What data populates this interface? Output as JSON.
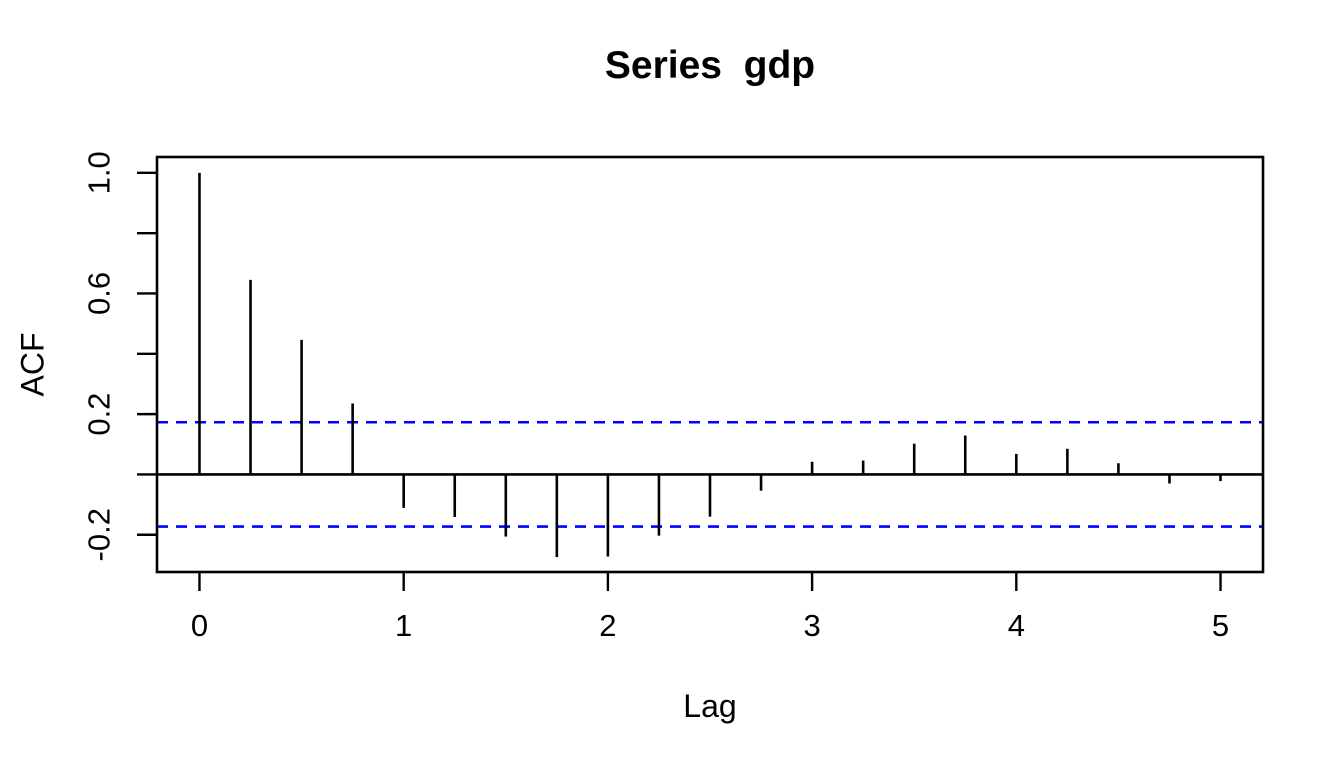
{
  "figure": {
    "background": "#ffffff"
  },
  "chart_data": {
    "type": "bar",
    "subtype": "acf-stem-plot",
    "title": "Series  gdp",
    "xlabel": "Lag",
    "ylabel": "ACF",
    "grid": false,
    "legend": null,
    "xlim": [
      -0.208,
      5.208
    ],
    "ylim": [
      -0.3235,
      1.0525
    ],
    "x": [
      0,
      0.25,
      0.5,
      0.75,
      1.0,
      1.25,
      1.5,
      1.75,
      2.0,
      2.25,
      2.5,
      2.75,
      3.0,
      3.25,
      3.5,
      3.75,
      4.0,
      4.25,
      4.5,
      4.75,
      5.0
    ],
    "values": [
      1.0,
      0.645,
      0.446,
      0.235,
      -0.111,
      -0.141,
      -0.206,
      -0.274,
      -0.272,
      -0.203,
      -0.14,
      -0.054,
      0.042,
      0.046,
      0.102,
      0.129,
      0.068,
      0.085,
      0.037,
      -0.03,
      -0.022
    ],
    "confidence_bounds": {
      "upper": 0.173,
      "lower": -0.173,
      "line_style": "dashed",
      "color": "#0000ff"
    },
    "x_ticks": [
      {
        "value": 0,
        "label": "0"
      },
      {
        "value": 1,
        "label": "1"
      },
      {
        "value": 2,
        "label": "2"
      },
      {
        "value": 3,
        "label": "3"
      },
      {
        "value": 4,
        "label": "4"
      },
      {
        "value": 5,
        "label": "5"
      }
    ],
    "y_ticks": [
      {
        "value": -0.2,
        "label": "-0.2"
      },
      {
        "value": 0.0,
        "label": ""
      },
      {
        "value": 0.2,
        "label": "0.2"
      },
      {
        "value": 0.4,
        "label": ""
      },
      {
        "value": 0.6,
        "label": "0.6"
      },
      {
        "value": 0.8,
        "label": ""
      },
      {
        "value": 1.0,
        "label": "1.0"
      }
    ],
    "colors": {
      "stem": "#000000",
      "axis": "#000000",
      "confidence_line": "#0000ff",
      "background": "#ffffff"
    }
  }
}
